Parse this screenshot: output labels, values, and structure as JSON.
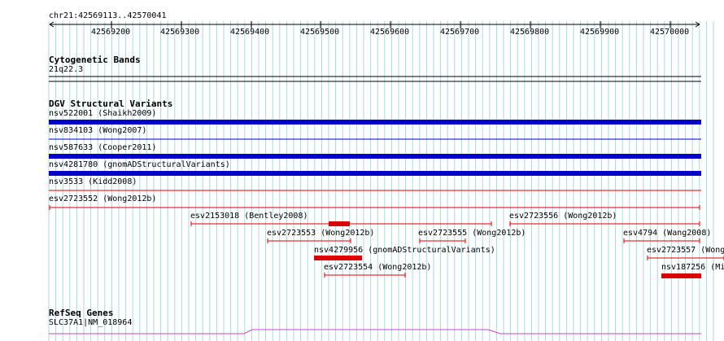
{
  "ruler": {
    "location": "chr21:42569113..42570041",
    "ticks": [
      "42569200",
      "42569300",
      "42569400",
      "42569500",
      "42569600",
      "42569700",
      "42569800",
      "42569900",
      "42570000"
    ]
  },
  "tracks": {
    "cytobands": {
      "title": "Cytogenetic Bands",
      "band": "21q22.3"
    },
    "dgv": {
      "title": "DGV Structural Variants",
      "features": [
        {
          "label": "nsv522001 (Shaikh2009)",
          "color": "#0000cc",
          "style": "thick"
        },
        {
          "label": "nsv834103 (Wong2007)",
          "color": "#0000cc",
          "style": "thin"
        },
        {
          "label": "nsv587633 (Cooper2011)",
          "color": "#0000cc",
          "style": "thick"
        },
        {
          "label": "nsv4281780 (gnomADStructuralVariants)",
          "color": "#0000cc",
          "style": "thick"
        },
        {
          "label": "nsv3533 (Kidd2008)",
          "color": "#dd0000",
          "style": "thin"
        },
        {
          "label": "esv2723552 (Wong2012b)",
          "color": "#dd0000",
          "style": "range"
        },
        {
          "label": "esv2153018 (Bentley2008)",
          "color": "#dd0000",
          "style": "range"
        },
        {
          "label": "esv2723556 (Wong2012b)",
          "color": "#dd0000",
          "style": "range"
        },
        {
          "label": "esv2723553 (Wong2012b)",
          "color": "#dd0000",
          "style": "range"
        },
        {
          "label": "esv2723555 (Wong2012b)",
          "color": "#dd0000",
          "style": "range"
        },
        {
          "label": "esv4794 (Wang2008)",
          "color": "#dd0000",
          "style": "range"
        },
        {
          "label": "nsv4279956 (gnomADStructuralVariants)",
          "color": "#dd0000",
          "style": "block"
        },
        {
          "label": "esv2723557 (Wong",
          "color": "#dd0000",
          "style": "range"
        },
        {
          "label": "esv2723554 (Wong2012b)",
          "color": "#dd0000",
          "style": "range"
        },
        {
          "label": "nsv187256 (Mi",
          "color": "#dd0000",
          "style": "block"
        }
      ]
    },
    "refseq": {
      "title": "RefSeq Genes",
      "gene": "SLC37A1|NM_018964",
      "color": "#cc44cc"
    }
  },
  "colors": {
    "grid": "#a8d8e0",
    "thick_blue": "#0000cc",
    "red": "#dd0000"
  }
}
